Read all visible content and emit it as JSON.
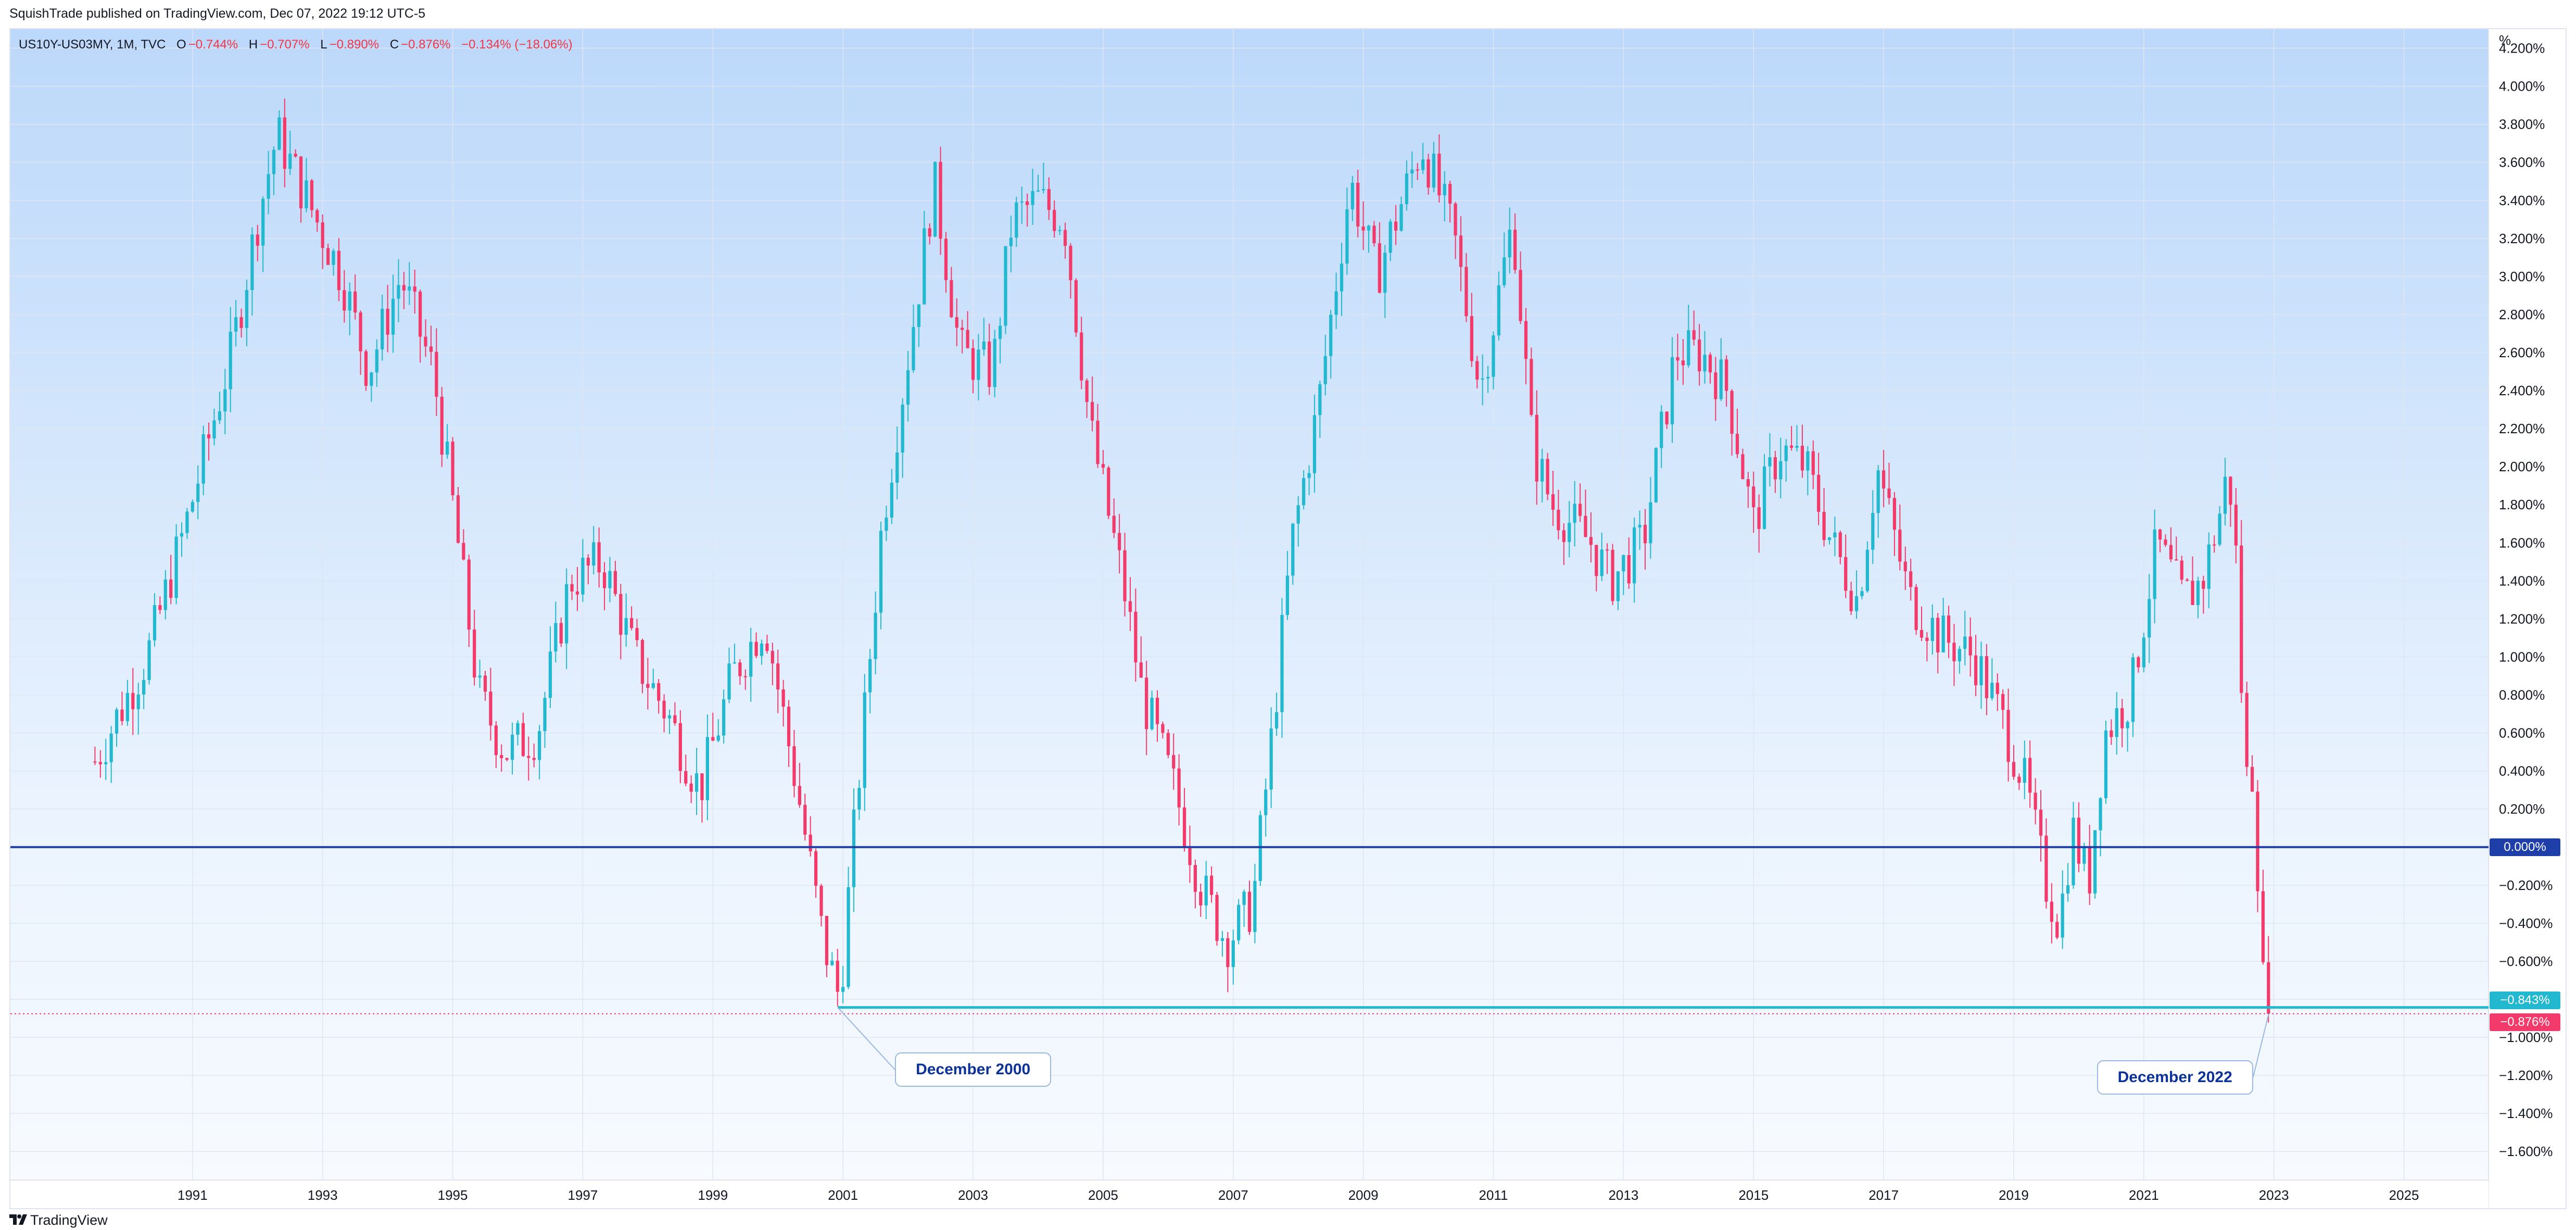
{
  "header": {
    "publish_info": "SquishTrade published on TradingView.com, Dec 07, 2022 19:12 UTC-5"
  },
  "legend": {
    "symbol": "US10Y-US03MY, 1M, TVC",
    "o_key": "O",
    "o_val": "−0.744%",
    "h_key": "H",
    "h_val": "−0.707%",
    "l_key": "L",
    "l_val": "−0.890%",
    "c_key": "C",
    "c_val": "−0.876%",
    "change": "−0.134% (−18.06%)"
  },
  "footer": {
    "brand": "TradingView"
  },
  "colors": {
    "up": "#22b8cf",
    "down": "#f23a6b",
    "zero_line": "#1e3fa8",
    "last_price": "#f23a6b",
    "marker": "#22b8cf"
  },
  "annotations": [
    {
      "text": "December 2000",
      "anchor_date": 2000.92,
      "anchor_value": -0.843
    },
    {
      "text": "December 2022",
      "anchor_date": 2022.92,
      "anchor_value": -0.876
    }
  ],
  "price_labels": {
    "zero": "0.000%",
    "marker": "−0.843%",
    "last": "−0.876%"
  },
  "chart_data": {
    "type": "candlestick",
    "symbol": "US10Y-US03MY",
    "interval": "1M",
    "y_unit_label": "%",
    "y_axis_position": "right",
    "ylim": [
      -1.75,
      4.3
    ],
    "xlim": [
      1988.2,
      2026.3
    ],
    "y_ticks": [
      "4.200%",
      "4.000%",
      "3.800%",
      "3.600%",
      "3.400%",
      "3.200%",
      "3.000%",
      "2.800%",
      "2.600%",
      "2.400%",
      "2.200%",
      "2.000%",
      "1.800%",
      "1.600%",
      "1.400%",
      "1.200%",
      "1.000%",
      "0.800%",
      "0.600%",
      "0.400%",
      "0.200%",
      "0.000%",
      "−0.200%",
      "−0.400%",
      "−0.600%",
      "−0.800%",
      "−1.000%",
      "−1.200%",
      "−1.400%",
      "−1.600%"
    ],
    "y_tick_values": [
      4.2,
      4.0,
      3.8,
      3.6,
      3.4,
      3.2,
      3.0,
      2.8,
      2.6,
      2.4,
      2.2,
      2.0,
      1.8,
      1.6,
      1.4,
      1.2,
      1.0,
      0.8,
      0.6,
      0.4,
      0.2,
      0.0,
      -0.2,
      -0.4,
      -0.6,
      -0.8,
      -1.0,
      -1.2,
      -1.4,
      -1.6
    ],
    "x_ticks": [
      "1991",
      "1993",
      "1995",
      "1997",
      "1999",
      "2001",
      "2003",
      "2005",
      "2007",
      "2009",
      "2011",
      "2013",
      "2015",
      "2017",
      "2019",
      "2021",
      "2023",
      "2025"
    ],
    "horizontal_lines": [
      {
        "value": 0.0,
        "style": "solid"
      },
      {
        "value": -0.843,
        "style": "solid"
      },
      {
        "value": -0.876,
        "style": "dotted"
      }
    ],
    "last_close": -0.876,
    "grid": true,
    "monthly_close_keypoints": [
      [
        1989.5,
        0.45
      ],
      [
        1990.3,
        1.0
      ],
      [
        1990.9,
        1.7
      ],
      [
        1991.6,
        2.6
      ],
      [
        1992.0,
        3.3
      ],
      [
        1992.3,
        3.75
      ],
      [
        1992.9,
        3.3
      ],
      [
        1993.3,
        3.0
      ],
      [
        1993.7,
        2.5
      ],
      [
        1994.2,
        3.0
      ],
      [
        1994.7,
        2.5
      ],
      [
        1995.0,
        1.8
      ],
      [
        1995.4,
        0.8
      ],
      [
        1995.8,
        0.5
      ],
      [
        1996.3,
        0.6
      ],
      [
        1996.8,
        1.4
      ],
      [
        1997.3,
        1.5
      ],
      [
        1997.8,
        1.0
      ],
      [
        1998.3,
        0.7
      ],
      [
        1998.8,
        0.3
      ],
      [
        1999.3,
        0.9
      ],
      [
        1999.8,
        1.2
      ],
      [
        2000.3,
        0.3
      ],
      [
        2000.7,
        -0.5
      ],
      [
        2000.95,
        -0.8
      ],
      [
        2001.2,
        0.2
      ],
      [
        2001.6,
        1.7
      ],
      [
        2002.1,
        2.8
      ],
      [
        2002.4,
        3.5
      ],
      [
        2002.8,
        2.6
      ],
      [
        2003.3,
        2.5
      ],
      [
        2003.6,
        3.3
      ],
      [
        2004.0,
        3.4
      ],
      [
        2004.4,
        3.3
      ],
      [
        2004.8,
        2.2
      ],
      [
        2005.3,
        1.4
      ],
      [
        2005.6,
        0.8
      ],
      [
        2006.1,
        0.3
      ],
      [
        2006.5,
        -0.2
      ],
      [
        2006.9,
        -0.5
      ],
      [
        2007.3,
        -0.3
      ],
      [
        2007.6,
        0.6
      ],
      [
        2007.9,
        1.6
      ],
      [
        2008.3,
        2.3
      ],
      [
        2008.8,
        3.5
      ],
      [
        2009.2,
        3.0
      ],
      [
        2009.6,
        3.4
      ],
      [
        2009.9,
        3.7
      ],
      [
        2010.4,
        3.2
      ],
      [
        2010.8,
        2.4
      ],
      [
        2011.3,
        3.3
      ],
      [
        2011.6,
        2.1
      ],
      [
        2011.9,
        1.8
      ],
      [
        2012.5,
        1.6
      ],
      [
        2012.8,
        1.4
      ],
      [
        2013.3,
        1.6
      ],
      [
        2013.8,
        2.6
      ],
      [
        2014.2,
        2.6
      ],
      [
        2014.6,
        2.4
      ],
      [
        2015.0,
        1.7
      ],
      [
        2015.4,
        2.1
      ],
      [
        2015.8,
        2.0
      ],
      [
        2016.2,
        1.6
      ],
      [
        2016.6,
        1.3
      ],
      [
        2016.9,
        2.0
      ],
      [
        2017.4,
        1.3
      ],
      [
        2017.9,
        1.1
      ],
      [
        2018.4,
        1.0
      ],
      [
        2018.9,
        0.6
      ],
      [
        2019.2,
        0.3
      ],
      [
        2019.5,
        -0.2
      ],
      [
        2019.7,
        -0.4
      ],
      [
        2019.9,
        0.1
      ],
      [
        2020.15,
        -0.2
      ],
      [
        2020.4,
        0.6
      ],
      [
        2020.8,
        0.8
      ],
      [
        2021.2,
        1.6
      ],
      [
        2021.6,
        1.3
      ],
      [
        2021.9,
        1.4
      ],
      [
        2022.2,
        1.8
      ],
      [
        2022.3,
        2.0
      ],
      [
        2022.45,
        1.4
      ],
      [
        2022.55,
        0.3
      ],
      [
        2022.65,
        0.5
      ],
      [
        2022.75,
        -0.1
      ],
      [
        2022.83,
        -0.7
      ],
      [
        2022.93,
        -0.876
      ]
    ]
  }
}
